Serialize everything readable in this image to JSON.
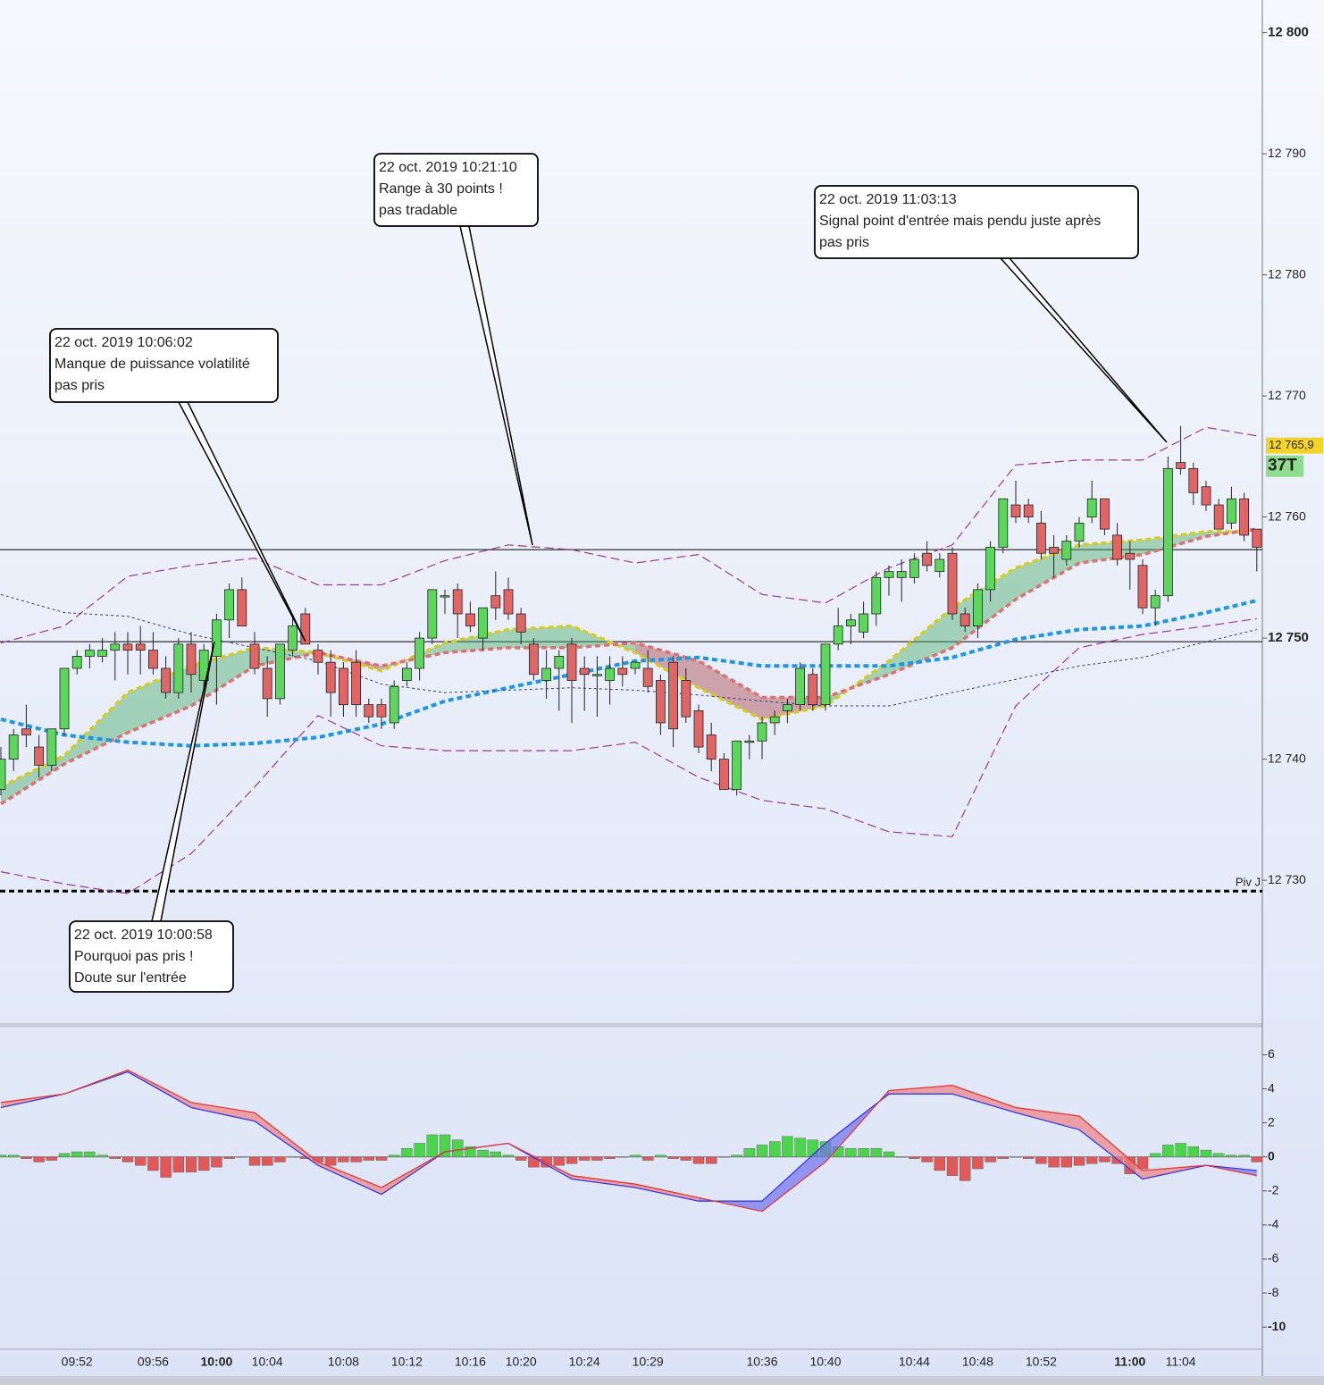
{
  "chart_data": [
    {
      "type": "candlestick",
      "categories": [
        null,
        null,
        null,
        null,
        null,
        null,
        "09:52",
        null,
        null,
        null,
        null,
        null,
        "09:56",
        null,
        null,
        null,
        null,
        "10:00",
        null,
        null,
        null,
        "10:04",
        null,
        null,
        null,
        null,
        null,
        "10:08",
        null,
        null,
        null,
        null,
        "10:12",
        null,
        null,
        null,
        null,
        "10:16",
        null,
        null,
        null,
        "10:20",
        null,
        null,
        null,
        null,
        "10:24",
        null,
        null,
        null,
        null,
        "10:29",
        null,
        null,
        null,
        null,
        null,
        null,
        null,
        null,
        "10:36",
        null,
        null,
        null,
        null,
        "10:40",
        null,
        null,
        null,
        null,
        null,
        null,
        "10:44",
        null,
        null,
        null,
        null,
        "10:48",
        null,
        null,
        null,
        null,
        "10:52",
        null,
        null,
        null,
        null,
        null,
        null,
        "11:00",
        null,
        null,
        null,
        "11:04",
        null,
        null,
        null,
        null,
        null,
        null
      ],
      "open": [
        12737.5,
        12740,
        12742.5,
        12741,
        12739.5,
        12742.5,
        12747.5,
        12748.5,
        12748.5,
        12749,
        12749.5,
        12749.5,
        12749,
        12747.5,
        12745.5,
        12749.5,
        12746.5,
        12748.5,
        12751.5,
        12754,
        12749.5,
        12747.5,
        12745,
        12749,
        12752,
        12749,
        12748,
        12747.5,
        12748,
        12744.5,
        12744.5,
        12743,
        12746.5,
        12747.5,
        12750,
        12753.5,
        12754,
        12752,
        12750,
        12753.5,
        12754,
        12752,
        12749.5,
        12746.5,
        12747.5,
        12749.5,
        12747.5,
        12747,
        12746.5,
        12747.5,
        12747.5,
        12747.5,
        12746.5,
        12748,
        12746.5,
        12744,
        12742,
        12740,
        12737.5,
        12741.5,
        12741.5,
        12743,
        12744,
        12744.5,
        12747,
        12744.5,
        12749.5,
        12751,
        12750.5,
        12752,
        12755,
        12755,
        12755,
        12757,
        12755.5,
        12757,
        12752,
        12751,
        12754,
        12757.5,
        12761,
        12761,
        12759.5,
        12757.5,
        12756.5,
        12758,
        12760,
        12761.5,
        12758.5,
        12757,
        12756,
        12752.5,
        12753.5,
        12764.5,
        12764,
        12762.5,
        12761,
        12759.5,
        12761.5,
        12759
      ],
      "high": [
        12741,
        12742.5,
        12744.5,
        12742,
        12742.5,
        12747.5,
        12749,
        12749.5,
        12750,
        12750.5,
        12750.5,
        12751,
        12750.5,
        12748.5,
        12750,
        12750.5,
        12749.5,
        12752,
        12754.5,
        12755,
        12750.5,
        12748.5,
        12749.5,
        12752,
        12752.5,
        12749.5,
        12749,
        12748,
        12749,
        12745,
        12745,
        12746.5,
        12748,
        12750.5,
        12754,
        12754,
        12754.5,
        12753,
        12752.5,
        12755.5,
        12755,
        12752.5,
        12750,
        12749,
        12749,
        12750,
        12748.5,
        12748.5,
        12748.5,
        12748.5,
        12748,
        12749,
        12747,
        12748.5,
        12747.5,
        12744.5,
        12743,
        12740.5,
        12741.5,
        12742,
        12743.5,
        12744,
        12745,
        12748,
        12747.5,
        12749.5,
        12752.5,
        12752,
        12753,
        12755.5,
        12756,
        12756.5,
        12757,
        12758,
        12757,
        12757.5,
        12752.5,
        12754.5,
        12758,
        12761.5,
        12763,
        12761.5,
        12760.5,
        12758.5,
        12758.5,
        12760,
        12763,
        12761.5,
        12759.5,
        12758,
        12756.5,
        12754,
        12765,
        12767.5,
        12764.5,
        12763,
        12761.5,
        12762.5,
        12762,
        12759
      ],
      "low": [
        12737,
        12739,
        12741,
        12738.5,
        12739,
        12742,
        12747,
        12747.5,
        12748,
        12746.5,
        12747,
        12747,
        12747,
        12745,
        12745,
        12745.5,
        12745,
        12744.5,
        12750,
        12751,
        12747,
        12743.5,
        12744.5,
        12748.5,
        12749.5,
        12747,
        12743.5,
        12743.5,
        12743.5,
        12743,
        12742.5,
        12742.5,
        12746,
        12746.5,
        12749.5,
        12752,
        12750,
        12750.5,
        12749,
        12751.5,
        12751.5,
        12749.5,
        12746.5,
        12745,
        12744,
        12743,
        12744,
        12743.5,
        12744.5,
        12746,
        12747,
        12745.5,
        12742,
        12741,
        12743,
        12740.5,
        12739,
        12737.5,
        12737,
        12740,
        12740,
        12742,
        12743,
        12744,
        12744,
        12744,
        12749,
        12749.5,
        12750,
        12751,
        12753.5,
        12753,
        12754.5,
        12755.5,
        12755,
        12751.5,
        12750.5,
        12750,
        12753,
        12757,
        12759.5,
        12759.5,
        12756.5,
        12755,
        12756,
        12757.5,
        12759.5,
        12758.5,
        12756,
        12754,
        12752,
        12751,
        12753,
        12763.5,
        12761,
        12760.5,
        12759,
        12759,
        12758,
        12755.5
      ],
      "close": [
        12740,
        12742,
        12742,
        12739.5,
        12742.5,
        12747.5,
        12748.5,
        12749,
        12749,
        12749.5,
        12749,
        12749,
        12747.5,
        12745.5,
        12749.5,
        12747,
        12749,
        12751.5,
        12754,
        12751,
        12747.5,
        12745,
        12749.5,
        12751,
        12749.5,
        12748,
        12745.5,
        12744.5,
        12744.5,
        12743.5,
        12743.5,
        12746,
        12747.5,
        12750,
        12754,
        12753.5,
        12752,
        12751,
        12752.5,
        12752.5,
        12752,
        12750.5,
        12747,
        12747.5,
        12748.5,
        12746.5,
        12747,
        12747,
        12747.5,
        12747,
        12748,
        12746,
        12743,
        12742.5,
        12743.5,
        12741,
        12740,
        12737.5,
        12741.5,
        12741.5,
        12743,
        12743.5,
        12744.5,
        12747.5,
        12744.5,
        12749.5,
        12751,
        12751.5,
        12752,
        12755,
        12755.5,
        12755.5,
        12756.5,
        12756,
        12756.5,
        12752,
        12751,
        12754,
        12757.5,
        12761.5,
        12760,
        12760,
        12757,
        12757,
        12758,
        12759.5,
        12761.5,
        12759,
        12756.5,
        12756.5,
        12752.5,
        12753.5,
        12764,
        12764,
        12762,
        12761,
        12759,
        12761.5,
        12758.5,
        12757.5
      ],
      "up_color": "#5cd65c",
      "down_color": "#e06666",
      "ylim": [
        12718.2,
        12802.7
      ],
      "yticks": [
        {
          "value": 12800,
          "label": "12 800"
        },
        {
          "value": 12790,
          "label": "12 790"
        },
        {
          "value": 12780,
          "label": "12 780"
        },
        {
          "value": 12770,
          "label": "12 770"
        },
        {
          "value": 12760,
          "label": "12 760"
        },
        {
          "value": 12750,
          "label": "12 750"
        },
        {
          "value": 12740,
          "label": "12 740"
        },
        {
          "value": 12730,
          "label": "12 730"
        }
      ],
      "lines": [
        {
          "color": "#d6cc1c",
          "width": 3.5,
          "dash": [
            6,
            4
          ],
          "x": [
            0,
            5,
            10,
            15,
            20,
            25,
            30,
            35,
            40,
            45,
            50,
            55,
            60,
            65,
            70,
            75,
            80,
            85,
            90,
            95,
            99
          ],
          "values": [
            12737.7,
            12740.3,
            12745.5,
            12747.7,
            12749.2,
            12748.8,
            12747.3,
            12749.6,
            12750.7,
            12751,
            12748.8,
            12745.9,
            12743.3,
            12744.4,
            12748.1,
            12752.5,
            12755.8,
            12757.7,
            12758.1,
            12758.8,
            12758.8
          ]
        },
        {
          "color": "#e07070",
          "width": 3.5,
          "dash": [
            6,
            4
          ],
          "x": [
            0,
            5,
            10,
            15,
            20,
            25,
            30,
            35,
            40,
            45,
            50,
            55,
            60,
            65,
            70,
            75,
            80,
            85,
            90,
            95,
            99
          ],
          "values": [
            12736.3,
            12739.6,
            12742.2,
            12744.4,
            12747.7,
            12748.8,
            12747.7,
            12748.8,
            12749.2,
            12749.2,
            12749.6,
            12748.1,
            12745.1,
            12745.1,
            12747,
            12749.2,
            12753.2,
            12756.2,
            12756.9,
            12758.4,
            12759
          ]
        },
        {
          "color": "#1e96e6",
          "width": 4,
          "dash": [
            6,
            4
          ],
          "x": [
            0,
            5,
            10,
            15,
            20,
            25,
            30,
            35,
            40,
            45,
            50,
            55,
            60,
            65,
            70,
            75,
            80,
            85,
            90,
            95,
            99
          ],
          "values": [
            12743.3,
            12742,
            12741.4,
            12741.1,
            12741.3,
            12741.8,
            12742.9,
            12744.8,
            12745.9,
            12747,
            12748.1,
            12748.4,
            12747.7,
            12747.7,
            12747.7,
            12748.4,
            12749.9,
            12750.7,
            12751,
            12752.1,
            12753.1
          ]
        },
        {
          "color": "#9a3a9a",
          "width": 1.2,
          "dash": [
            10,
            5
          ],
          "x": [
            0,
            5,
            10,
            15,
            20,
            25,
            30,
            35,
            40,
            45,
            50,
            55,
            60,
            65,
            70,
            75,
            80,
            85,
            90,
            95,
            99
          ],
          "values": [
            12749.6,
            12751,
            12755.1,
            12756,
            12756.6,
            12754.4,
            12754.4,
            12756.4,
            12757.7,
            12757.3,
            12756.2,
            12756.9,
            12753.6,
            12752.9,
            12755.8,
            12757.7,
            12764.3,
            12764.7,
            12764.7,
            12767.4,
            12766.7
          ]
        },
        {
          "color": "#9a3a9a",
          "width": 1.2,
          "dash": [
            10,
            5
          ],
          "x": [
            0,
            5,
            10,
            15,
            20,
            25,
            30,
            35,
            40,
            45,
            50,
            55,
            60,
            65,
            70,
            75,
            80,
            85,
            90,
            95,
            99
          ],
          "values": [
            12730.7,
            12729.7,
            12728.9,
            12732.2,
            12737.7,
            12743.6,
            12741.1,
            12740.7,
            12740.7,
            12740.7,
            12741.4,
            12738.5,
            12736.6,
            12735.9,
            12734,
            12733.6,
            12744.4,
            12749.2,
            12750.3,
            12751,
            12751.6
          ]
        },
        {
          "color": "#3a3a7a",
          "width": 1,
          "dash": [
            3,
            3
          ],
          "x": [
            0,
            5,
            10,
            15,
            20,
            25,
            30,
            35,
            40,
            45,
            50,
            55,
            60,
            65,
            70,
            75,
            80,
            85,
            90,
            95,
            99
          ],
          "values": [
            12753.6,
            12752.1,
            12751.8,
            12750.3,
            12749.2,
            12748.1,
            12746.2,
            12745.5,
            12745.7,
            12745.9,
            12745.7,
            12745.3,
            12744.8,
            12744.4,
            12744.4,
            12745.5,
            12746.6,
            12747.7,
            12748.4,
            12749.7,
            12750.7
          ]
        }
      ],
      "cloud_up_color": "#4cae6a",
      "cloud_down_color": "#a8444c",
      "levels": [
        {
          "value": 12757.3,
          "color": "#000000"
        },
        {
          "value": 12749.7,
          "color": "#000000"
        },
        {
          "value": 12729.1,
          "color": "#000000",
          "dashed": true,
          "label": "Piv J"
        }
      ],
      "last_price": {
        "value": 12765.9,
        "label": "12 765,9"
      },
      "tick_label": "37T",
      "annotations": [
        {
          "lines": [
            "22 oct. 2019 10:21:10",
            "Range à 30 points !",
            "pas tradable"
          ]
        },
        {
          "lines": [
            "22 oct. 2019 10:06:02",
            "Manque de puissance volatilité",
            "pas pris"
          ]
        },
        {
          "lines": [
            "22 oct. 2019 11:03:13",
            "Signal point d'entrée mais pendu juste après",
            "pas pris"
          ]
        },
        {
          "lines": [
            "22 oct. 2019 10:00:58",
            "Pourquoi pas pris !",
            "Doute sur l'entrée"
          ]
        }
      ]
    },
    {
      "type": "macd",
      "ylim": [
        -11.2,
        7.6
      ],
      "yticks": [
        6,
        4,
        2,
        0,
        -2,
        -4,
        -6,
        -8,
        -10
      ],
      "histogram": [
        0.1,
        0.1,
        -0.1,
        -0.3,
        -0.2,
        0.2,
        0.3,
        0.3,
        0.1,
        -0.1,
        -0.3,
        -0.5,
        -0.8,
        -1.2,
        -0.9,
        -0.9,
        -0.8,
        -0.6,
        -0.1,
        0,
        -0.5,
        -0.5,
        -0.3,
        0,
        -0.1,
        -0.3,
        -0.5,
        -0.3,
        -0.3,
        -0.2,
        -0.2,
        0.1,
        0.5,
        0.8,
        1.3,
        1.3,
        1.0,
        0.6,
        0.4,
        0.3,
        0.1,
        -0.2,
        -0.6,
        -0.6,
        -0.5,
        -0.4,
        -0.2,
        -0.2,
        -0.1,
        0,
        0.1,
        -0.2,
        0.1,
        -0.1,
        -0.2,
        -0.4,
        -0.4,
        0,
        0.1,
        0.5,
        0.7,
        0.9,
        1.2,
        1.1,
        1.0,
        0.9,
        0.6,
        0.5,
        0.5,
        0.5,
        0.3,
        0,
        -0.1,
        -0.3,
        -0.8,
        -1.1,
        -1.4,
        -0.7,
        -0.3,
        -0.1,
        0,
        -0.1,
        -0.4,
        -0.6,
        -0.6,
        -0.5,
        -0.4,
        -0.3,
        -0.4,
        -1.0,
        -0.7,
        0.2,
        0.7,
        0.8,
        0.6,
        0.4,
        0.2,
        0.1,
        0.1,
        -0.3
      ],
      "up_color": "#4cd44c",
      "down_color": "#e05858",
      "lines": [
        {
          "color": "#3a3ae0",
          "x": [
            0,
            5,
            10,
            15,
            20,
            25,
            30,
            35,
            40,
            45,
            50,
            55,
            60,
            65,
            70,
            75,
            80,
            85,
            90,
            95,
            99
          ],
          "values": [
            2.9,
            3.7,
            5.0,
            2.9,
            2.1,
            -0.5,
            -2.2,
            0.3,
            0.8,
            -1.3,
            -1.8,
            -2.6,
            -2.6,
            0.8,
            3.7,
            3.7,
            2.6,
            1.6,
            -1.3,
            -0.5,
            -0.8
          ]
        },
        {
          "color": "#e03a3a",
          "x": [
            0,
            5,
            10,
            15,
            20,
            25,
            30,
            35,
            40,
            45,
            50,
            55,
            60,
            65,
            70,
            75,
            80,
            85,
            90,
            95,
            99
          ],
          "values": [
            3.2,
            3.7,
            5.1,
            3.2,
            2.6,
            -0.3,
            -1.8,
            0.3,
            0.8,
            -1.1,
            -1.6,
            -2.4,
            -3.2,
            -0.3,
            3.9,
            4.2,
            2.9,
            2.4,
            -0.8,
            -0.5,
            -1.1
          ]
        }
      ]
    }
  ]
}
